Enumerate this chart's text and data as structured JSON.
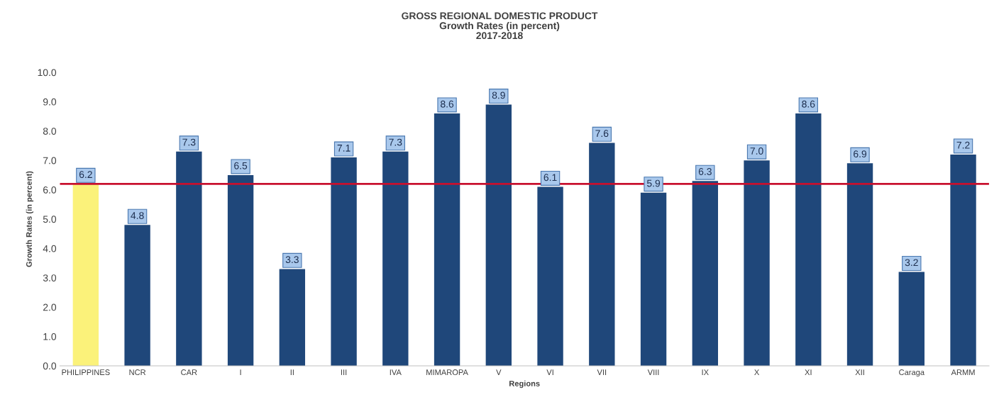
{
  "chart_data": {
    "type": "bar",
    "title": "GROSS REGIONAL DOMESTIC PRODUCT\nGrowth Rates (in percent)\n2017-2018",
    "xlabel": "Regions",
    "ylabel": "Growth Rates (in percent)",
    "categories": [
      "PHILIPPINES",
      "NCR",
      "CAR",
      "I",
      "II",
      "III",
      "IVA",
      "MIMAROPA",
      "V",
      "VI",
      "VII",
      "VIII",
      "IX",
      "X",
      "XI",
      "XII",
      "Caraga",
      "ARMM"
    ],
    "values": [
      6.2,
      4.8,
      7.3,
      6.5,
      3.3,
      7.1,
      7.3,
      8.6,
      8.9,
      6.1,
      7.6,
      5.9,
      6.3,
      7.0,
      8.6,
      6.9,
      3.2,
      7.2
    ],
    "value_labels": [
      "6.2",
      "4.8",
      "7.3",
      "6.5",
      "3.3",
      "7.1",
      "7.3",
      "8.6",
      "8.9",
      "6.1",
      "7.6",
      "5.9",
      "6.3",
      "7.0",
      "8.6",
      "6.9",
      "3.2",
      "7.2"
    ],
    "colors": [
      "#fbf27a",
      "#1f477a",
      "#1f477a",
      "#1f477a",
      "#1f477a",
      "#1f477a",
      "#1f477a",
      "#1f477a",
      "#1f477a",
      "#1f477a",
      "#1f477a",
      "#1f477a",
      "#1f477a",
      "#1f477a",
      "#1f477a",
      "#1f477a",
      "#1f477a",
      "#1f477a"
    ],
    "ylim": [
      0,
      10
    ],
    "yticks": [
      {
        "value": 0,
        "label": "0.0"
      },
      {
        "value": 1,
        "label": "1.0"
      },
      {
        "value": 2,
        "label": "2.0"
      },
      {
        "value": 3,
        "label": "3.0"
      },
      {
        "value": 4,
        "label": "4.0"
      },
      {
        "value": 5,
        "label": "5.0"
      },
      {
        "value": 6,
        "label": "6.0"
      },
      {
        "value": 7,
        "label": "7.0"
      },
      {
        "value": 8,
        "label": "8.0"
      },
      {
        "value": 9,
        "label": "9.0"
      },
      {
        "value": 10,
        "label": "10.0"
      }
    ],
    "ref_lines": [
      {
        "axis": "y",
        "value": 6.2,
        "color": "#c8102e"
      }
    ],
    "grid": false,
    "legend": false
  }
}
